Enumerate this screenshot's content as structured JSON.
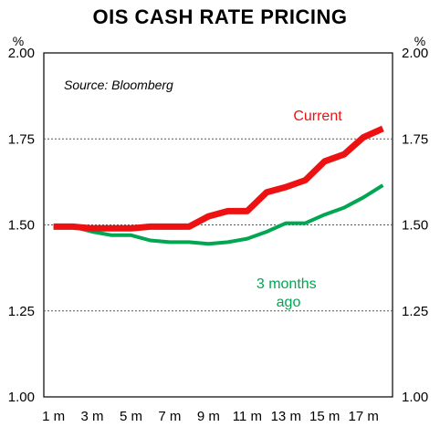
{
  "title": "OIS CASH RATE PRICING",
  "chart_data": {
    "type": "line",
    "title": "OIS CASH RATE PRICING",
    "source": "Source: Bloomberg",
    "unit_left": "%",
    "unit_right": "%",
    "ylim": [
      1.0,
      2.0
    ],
    "y_ticks": [
      "1.00",
      "1.25",
      "1.50",
      "1.75",
      "2.00"
    ],
    "y_tick_values": [
      1.0,
      1.25,
      1.5,
      1.75,
      2.0
    ],
    "x": [
      1,
      2,
      3,
      4,
      5,
      6,
      7,
      8,
      9,
      10,
      11,
      12,
      13,
      14,
      15,
      16,
      17,
      18
    ],
    "x_tick_labels": [
      "1 m",
      "3 m",
      "5 m",
      "7 m",
      "9 m",
      "11 m",
      "13 m",
      "15 m",
      "17 m"
    ],
    "x_tick_values": [
      1,
      3,
      5,
      7,
      9,
      11,
      13,
      15,
      17
    ],
    "gridlines_dotted_at": [
      1.25,
      1.5,
      1.75
    ],
    "series": [
      {
        "name": "Current",
        "color": "#ee1111",
        "values": [
          1.495,
          1.495,
          1.49,
          1.49,
          1.49,
          1.495,
          1.495,
          1.495,
          1.525,
          1.54,
          1.54,
          1.595,
          1.61,
          1.63,
          1.685,
          1.705,
          1.755,
          1.78
        ]
      },
      {
        "name": "3 months ago",
        "label_lines": [
          "3 months",
          "ago"
        ],
        "color": "#00a651",
        "values": [
          1.495,
          1.495,
          1.48,
          1.47,
          1.47,
          1.455,
          1.45,
          1.45,
          1.445,
          1.45,
          1.46,
          1.48,
          1.505,
          1.505,
          1.53,
          1.55,
          1.58,
          1.615
        ]
      }
    ]
  }
}
